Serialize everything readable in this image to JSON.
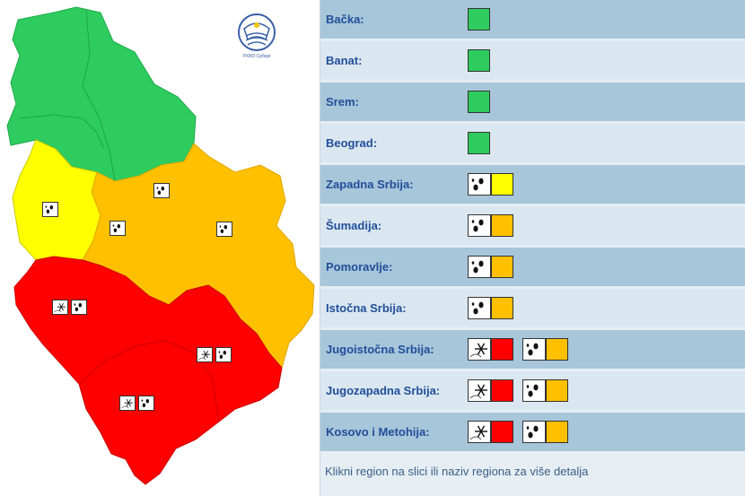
{
  "logo": {
    "text": "РХМЗ Србије"
  },
  "regions": [
    {
      "label": "Bačka:",
      "warnings": [
        {
          "icon": "",
          "level": "green"
        }
      ]
    },
    {
      "label": "Banat:",
      "warnings": [
        {
          "icon": "",
          "level": "green"
        }
      ]
    },
    {
      "label": "Srem:",
      "warnings": [
        {
          "icon": "",
          "level": "green"
        }
      ]
    },
    {
      "label": "Beograd:",
      "warnings": [
        {
          "icon": "",
          "level": "green"
        }
      ]
    },
    {
      "label": "Zapadna Srbija:",
      "warnings": [
        {
          "icon": "rain-icon",
          "level": "yellow"
        }
      ]
    },
    {
      "label": "Šumadija:",
      "warnings": [
        {
          "icon": "rain-icon",
          "level": "orange"
        }
      ]
    },
    {
      "label": "Pomoravlje:",
      "warnings": [
        {
          "icon": "rain-icon",
          "level": "orange"
        }
      ]
    },
    {
      "label": "Istočna Srbija:",
      "warnings": [
        {
          "icon": "rain-icon",
          "level": "orange"
        }
      ]
    },
    {
      "label": "Jugoistočna Srbija:",
      "warnings": [
        {
          "icon": "snow-icon",
          "level": "red"
        },
        {
          "icon": "rain-icon",
          "level": "orange"
        }
      ]
    },
    {
      "label": "Jugozapadna Srbija:",
      "warnings": [
        {
          "icon": "snow-icon",
          "level": "red"
        },
        {
          "icon": "rain-icon",
          "level": "orange"
        }
      ]
    },
    {
      "label": "Kosovo i Metohija:",
      "warnings": [
        {
          "icon": "snow-icon",
          "level": "red"
        },
        {
          "icon": "rain-icon",
          "level": "orange"
        }
      ]
    }
  ],
  "footnote": "Klikni region na slici ili naziv regiona za više detalja",
  "colors": {
    "green": "#2ecc5e",
    "yellow": "#ffff00",
    "orange": "#ffc000",
    "red": "#ff0000",
    "label": "#1f4e9a",
    "row_dark": "#a8c6da",
    "row_light": "#dbe7f0"
  }
}
